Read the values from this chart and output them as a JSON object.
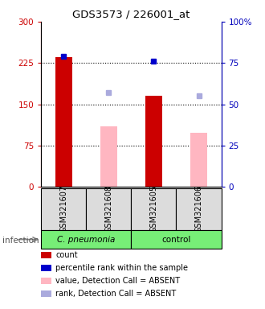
{
  "title": "GDS3573 / 226001_at",
  "samples": [
    "GSM321607",
    "GSM321608",
    "GSM321605",
    "GSM321606"
  ],
  "count_values": [
    235,
    null,
    165,
    null
  ],
  "count_absent_values": [
    null,
    110,
    null,
    98
  ],
  "percentile_values": [
    79,
    null,
    76,
    null
  ],
  "percentile_absent_values": [
    null,
    57,
    null,
    55
  ],
  "ylim_left": [
    0,
    300
  ],
  "ylim_right": [
    0,
    100
  ],
  "yticks_left": [
    0,
    75,
    150,
    225,
    300
  ],
  "yticks_right": [
    0,
    25,
    50,
    75,
    100
  ],
  "ytick_labels_right": [
    "0",
    "25",
    "50",
    "75",
    "100%"
  ],
  "bar_color_present": "#CC0000",
  "bar_color_absent": "#FFB6C1",
  "dot_color_present": "#0000CC",
  "dot_color_absent": "#AAAADD",
  "bg_color": "#DCDCDC",
  "plot_bg": "#FFFFFF",
  "left_axis_color": "#CC0000",
  "right_axis_color": "#0000BB",
  "green_color": "#77EE77",
  "legend_items": [
    {
      "color": "#CC0000",
      "label": "count"
    },
    {
      "color": "#0000CC",
      "label": "percentile rank within the sample"
    },
    {
      "color": "#FFB6C1",
      "label": "value, Detection Call = ABSENT"
    },
    {
      "color": "#AAAADD",
      "label": "rank, Detection Call = ABSENT"
    }
  ],
  "infection_label": "infection",
  "cpneumonia_label": "C. pneumonia",
  "control_label": "control"
}
